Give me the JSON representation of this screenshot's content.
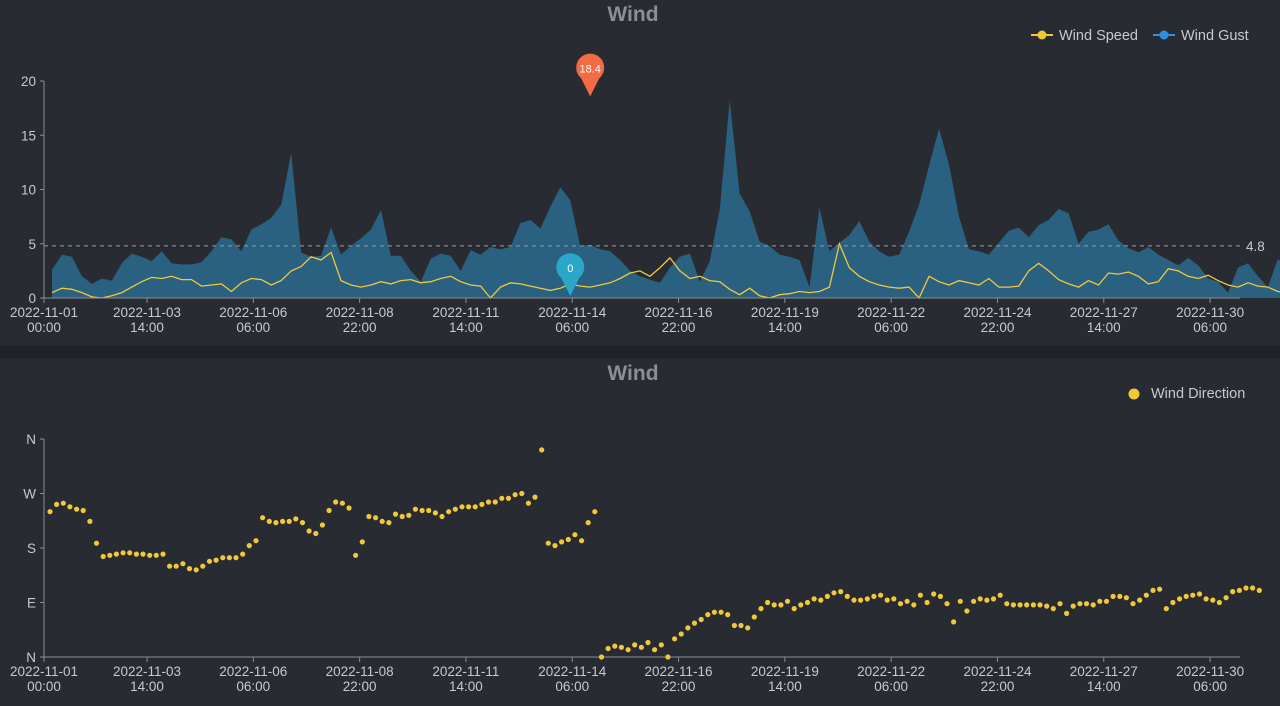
{
  "colors": {
    "background": "#292b32",
    "wind_speed": "#f0c93a",
    "wind_gust": "#2f8fde",
    "gust_area": "#2a6a8e",
    "max_marker": "#f26b45",
    "min_marker": "#2ba7c9",
    "direction": "#f0c93a",
    "mark_line": "#9a9ca2"
  },
  "icons": {
    "max_marker": "pin-marker-icon",
    "min_marker": "pin-marker-icon",
    "legend_line": "line-dot-icon",
    "legend_dot": "dot-icon"
  },
  "chart_data": [
    {
      "type": "area",
      "title": "Wind",
      "legend": {
        "position": "top-right",
        "items": [
          "Wind Speed",
          "Wind Gust"
        ]
      },
      "x_ticks": [
        [
          "2022-11-01",
          "00:00"
        ],
        [
          "2022-11-03",
          "14:00"
        ],
        [
          "2022-11-06",
          "06:00"
        ],
        [
          "2022-11-08",
          "22:00"
        ],
        [
          "2022-11-11",
          "14:00"
        ],
        [
          "2022-11-14",
          "06:00"
        ],
        [
          "2022-11-16",
          "22:00"
        ],
        [
          "2022-11-19",
          "14:00"
        ],
        [
          "2022-11-22",
          "06:00"
        ],
        [
          "2022-11-24",
          "22:00"
        ],
        [
          "2022-11-27",
          "14:00"
        ],
        [
          "2022-11-30",
          "06:00"
        ]
      ],
      "y_ticks": [
        "0",
        "5",
        "10",
        "15",
        "20"
      ],
      "ylim": [
        0,
        20
      ],
      "xlim": [
        "2022-11-01 00:00",
        "2022-12-01 00:00"
      ],
      "grid": false,
      "series": [
        {
          "name": "Wind Gust",
          "style": "filled-area",
          "start": "2022-11-01 00:00",
          "step_hours": 6,
          "values": [
            2.6,
            4.0,
            3.8,
            2.0,
            1.3,
            1.8,
            1.6,
            3.2,
            4.1,
            3.8,
            3.4,
            4.3,
            3.2,
            3.1,
            3.1,
            3.3,
            4.3,
            5.6,
            5.4,
            4.3,
            6.3,
            6.8,
            7.4,
            8.6,
            13.4,
            4.2,
            3.8,
            3.9,
            6.5,
            4.0,
            4.8,
            5.5,
            6.3,
            8.1,
            3.9,
            3.9,
            2.5,
            1.5,
            3.6,
            4.1,
            3.9,
            2.5,
            4.4,
            4.0,
            4.7,
            4.5,
            4.7,
            6.9,
            7.2,
            6.4,
            8.4,
            10.2,
            9.0,
            4.8,
            4.9,
            4.5,
            4.3,
            3.5,
            2.5,
            2.0,
            1.7,
            1.4,
            2.8,
            3.8,
            4.1,
            1.5,
            3.4,
            8.2,
            18.2,
            9.6,
            8.0,
            5.2,
            4.8,
            4.0,
            3.8,
            3.5,
            1.0,
            8.3,
            4.3,
            5.1,
            5.8,
            7.1,
            5.2,
            4.3,
            3.8,
            4.0,
            6.1,
            8.6,
            12.2,
            15.6,
            12.3,
            7.5,
            4.5,
            4.3,
            4.0,
            5.1,
            6.2,
            6.5,
            5.6,
            6.7,
            7.2,
            8.2,
            7.8,
            5.0,
            6.1,
            6.3,
            6.8,
            5.3,
            4.6,
            4.2,
            4.7,
            4.0,
            3.5,
            3.0,
            3.7,
            3.0,
            1.8,
            1.5,
            0.5,
            2.8,
            3.2,
            2.0,
            1.0,
            3.6,
            2.6,
            3.2,
            3.0,
            3.5,
            3.8,
            3.5,
            5.5,
            5.0,
            3.3,
            3.1,
            3.3,
            3.0,
            3.5,
            2.8,
            3.2,
            3.0,
            3.6,
            2.9,
            3.3,
            4.5,
            4.2,
            3.6,
            3.8,
            3.8,
            3.3,
            3.3,
            3.5,
            4.0,
            7.5,
            5.6,
            5.5,
            4.5,
            4.7,
            3.8,
            3.5,
            3.6,
            3.1,
            3.0,
            2.5,
            2.5,
            3.1,
            2.9,
            2.4,
            6.1,
            3.4
          ]
        },
        {
          "name": "Wind Speed",
          "style": "line",
          "start": "2022-11-01 00:00",
          "step_hours": 6,
          "values": [
            0.5,
            0.9,
            0.8,
            0.5,
            0.1,
            0.0,
            0.2,
            0.5,
            1.0,
            1.5,
            1.9,
            1.8,
            2.0,
            1.7,
            1.7,
            1.1,
            1.2,
            1.3,
            0.6,
            1.4,
            1.8,
            1.7,
            1.2,
            1.6,
            2.5,
            2.9,
            3.8,
            3.5,
            4.2,
            1.6,
            1.2,
            1.0,
            1.2,
            1.5,
            1.3,
            1.6,
            1.7,
            1.4,
            1.5,
            1.8,
            2.0,
            1.5,
            1.2,
            1.1,
            0.0,
            1.0,
            1.4,
            1.3,
            1.1,
            0.9,
            0.7,
            0.9,
            1.3,
            1.1,
            1.0,
            1.2,
            1.4,
            1.8,
            2.3,
            2.5,
            2.0,
            2.8,
            3.7,
            2.5,
            1.8,
            2.0,
            1.6,
            1.5,
            0.8,
            0.3,
            0.9,
            0.2,
            0.0,
            0.3,
            0.4,
            0.6,
            0.5,
            0.6,
            1.0,
            5.0,
            2.8,
            2.0,
            1.5,
            1.2,
            1.0,
            0.9,
            1.0,
            0.0,
            2.0,
            1.5,
            1.2,
            1.6,
            1.4,
            1.2,
            1.8,
            1.0,
            1.0,
            1.1,
            2.5,
            3.2,
            2.5,
            1.7,
            1.3,
            1.0,
            1.6,
            1.2,
            2.3,
            2.2,
            2.4,
            2.0,
            1.3,
            1.5,
            2.7,
            2.5,
            2.0,
            1.8,
            2.1,
            1.6,
            1.2,
            1.0,
            1.4,
            1.1,
            1.0,
            0.6,
            0.5,
            0.6,
            0.6,
            0.4,
            0.0,
            0.8,
            1.1,
            0.5,
            1.0,
            0.9,
            0.8,
            1.0,
            1.1,
            1.0,
            1.2,
            1.1,
            0.9,
            1.3,
            1.2,
            1.0,
            1.1,
            1.1,
            0.8,
            0.9,
            0.8,
            0.7,
            0.5,
            0.6,
            1.0,
            1.2,
            1.5,
            1.8,
            1.3,
            1.0,
            1.1,
            1.3,
            1.6,
            1.9,
            1.8,
            2.3,
            1.8,
            1.6,
            1.4,
            1.4,
            1.3,
            1.0,
            1.5,
            1.3,
            0.5,
            1.4,
            1.2
          ]
        }
      ],
      "mark_line": {
        "type": "average",
        "value": 4.8,
        "label": "4.8"
      },
      "mark_points": [
        {
          "type": "max",
          "label": "18.4",
          "x": "2022-11-14 12:00",
          "y": 18.4
        },
        {
          "type": "min",
          "label": "0",
          "x": "2022-11-14 00:00",
          "y": 0
        }
      ]
    },
    {
      "type": "scatter",
      "title": "Wind",
      "legend": {
        "position": "top-right",
        "items": [
          "Wind Direction"
        ]
      },
      "x_ticks": [
        [
          "2022-11-01",
          "00:00"
        ],
        [
          "2022-11-03",
          "14:00"
        ],
        [
          "2022-11-06",
          "06:00"
        ],
        [
          "2022-11-08",
          "22:00"
        ],
        [
          "2022-11-11",
          "14:00"
        ],
        [
          "2022-11-14",
          "06:00"
        ],
        [
          "2022-11-16",
          "22:00"
        ],
        [
          "2022-11-19",
          "14:00"
        ],
        [
          "2022-11-22",
          "06:00"
        ],
        [
          "2022-11-24",
          "22:00"
        ],
        [
          "2022-11-27",
          "14:00"
        ],
        [
          "2022-11-30",
          "06:00"
        ]
      ],
      "y_ticks": [
        "N",
        "E",
        "S",
        "W",
        "N"
      ],
      "ylim": [
        0,
        360
      ],
      "xlim": [
        "2022-11-01 00:00",
        "2022-12-01 00:00"
      ],
      "grid": false,
      "series": [
        {
          "name": "Wind Direction",
          "unit": "degrees",
          "start": "2022-11-01 00:00",
          "step_hours": 4,
          "values": [
            240,
            252,
            254,
            248,
            244,
            242,
            224,
            188,
            166,
            168,
            170,
            172,
            172,
            170,
            170,
            168,
            168,
            170,
            150,
            150,
            154,
            146,
            144,
            150,
            158,
            160,
            164,
            164,
            164,
            170,
            184,
            192,
            230,
            224,
            222,
            224,
            224,
            228,
            222,
            208,
            204,
            218,
            242,
            256,
            254,
            246,
            168,
            190,
            232,
            230,
            224,
            222,
            236,
            232,
            234,
            244,
            242,
            242,
            238,
            232,
            240,
            244,
            248,
            248,
            248,
            252,
            256,
            256,
            262,
            262,
            268,
            270,
            254,
            264,
            342,
            188,
            184,
            190,
            194,
            202,
            192,
            222,
            240,
            0,
            14,
            18,
            16,
            12,
            20,
            16,
            24,
            12,
            20,
            0,
            30,
            38,
            48,
            56,
            62,
            70,
            74,
            74,
            70,
            52,
            52,
            48,
            66,
            80,
            90,
            86,
            86,
            92,
            80,
            86,
            90,
            96,
            94,
            100,
            106,
            108,
            100,
            94,
            94,
            96,
            100,
            102,
            94,
            96,
            88,
            92,
            86,
            102,
            90,
            104,
            100,
            88,
            58,
            92,
            76,
            92,
            96,
            94,
            96,
            102,
            88,
            86,
            86,
            86,
            86,
            86,
            84,
            80,
            88,
            72,
            84,
            88,
            88,
            86,
            92,
            92,
            100,
            100,
            98,
            88,
            94,
            102,
            110,
            112,
            80,
            90,
            96,
            100,
            102,
            104,
            96,
            94,
            90,
            98,
            108,
            110,
            114,
            114,
            110
          ]
        }
      ]
    }
  ]
}
